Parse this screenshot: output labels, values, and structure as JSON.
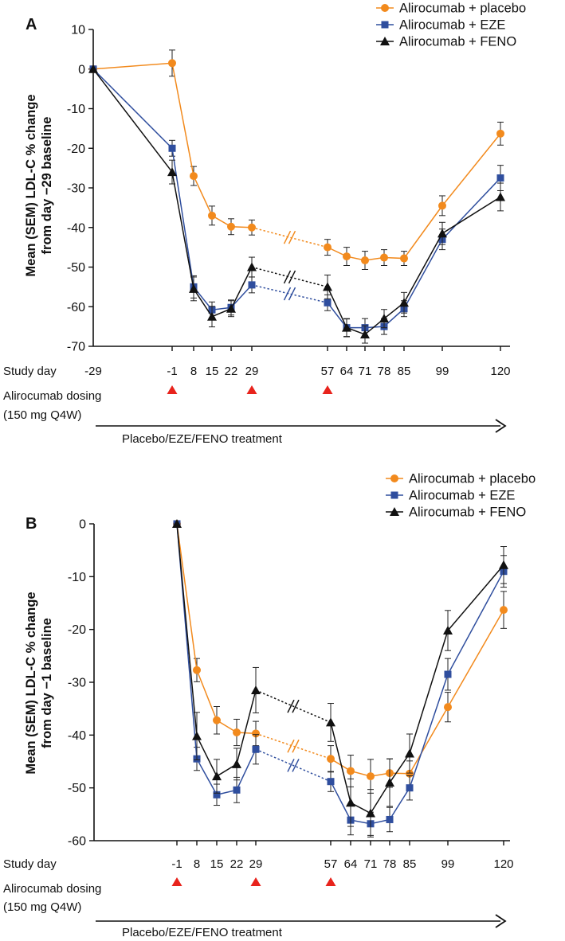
{
  "colors": {
    "placebo": "#f28a1d",
    "eze": "#2f4e9e",
    "feno": "#111111",
    "dosing": "#e8231c",
    "axis": "#111111"
  },
  "labels": {
    "study_day": "Study day",
    "dosing_line1": "Alirocumab dosing",
    "dosing_line2": "(150 mg Q4W)",
    "treatment": "Placebo/EZE/FENO treatment"
  },
  "chart_data": [
    {
      "type": "line",
      "panel": "A",
      "ylabel_line1": "Mean (SEM) LDL-C % change",
      "ylabel_line2": "from day −29 baseline",
      "ylim": [
        -70,
        10
      ],
      "yticks": [
        "10",
        "0",
        "-10",
        "-20",
        "-30",
        "-40",
        "-50",
        "-60",
        "-70"
      ],
      "x": [
        "-29",
        "-1",
        "8",
        "15",
        "22",
        "29",
        "57",
        "64",
        "71",
        "78",
        "85",
        "99",
        "120"
      ],
      "series": [
        {
          "name": "Alirocumab + placebo",
          "key": "placebo",
          "marker": "circle",
          "values": [
            0,
            1.5,
            -27,
            -37,
            -39.8,
            -40,
            -45,
            -47.3,
            -48.3,
            -47.6,
            -47.8,
            -34.5,
            -16.3
          ],
          "sem": [
            0,
            3.3,
            2.4,
            2.4,
            2.0,
            1.9,
            2.0,
            2.3,
            2.3,
            2.0,
            1.8,
            2.5,
            2.9
          ]
        },
        {
          "name": "Alirocumab + EZE",
          "key": "eze",
          "marker": "square",
          "values": [
            0,
            -20,
            -55,
            -60.8,
            -60.2,
            -54.5,
            -59,
            -65.3,
            -65.3,
            -65,
            -60.5,
            -43,
            -27.5
          ],
          "sem": [
            0,
            2.0,
            2.8,
            2.0,
            1.9,
            2.0,
            2.0,
            2.2,
            2.3,
            2.0,
            2.0,
            2.6,
            3.2
          ]
        },
        {
          "name": "Alirocumab + FENO",
          "key": "feno",
          "marker": "triangle",
          "values": [
            0,
            -26,
            -55.5,
            -62.5,
            -60.5,
            -50,
            -55,
            -65.3,
            -67,
            -63,
            -59,
            -41.5,
            -32.3
          ],
          "sem": [
            0,
            3.0,
            3.0,
            2.6,
            2.0,
            2.5,
            3.0,
            2.3,
            2.2,
            2.3,
            2.6,
            2.8,
            3.5
          ]
        }
      ]
    },
    {
      "type": "line",
      "panel": "B",
      "ylabel_line1": "Mean (SEM) LDL-C % change",
      "ylabel_line2": "from day −1 baseline",
      "ylim": [
        -60,
        0
      ],
      "yticks": [
        "0",
        "-10",
        "-20",
        "-30",
        "-40",
        "-50",
        "-60"
      ],
      "x": [
        "-1",
        "8",
        "15",
        "22",
        "29",
        "57",
        "64",
        "71",
        "78",
        "85",
        "99",
        "120"
      ],
      "series": [
        {
          "name": "Alirocumab + placebo",
          "key": "placebo",
          "marker": "circle",
          "values": [
            0,
            -27.7,
            -37.2,
            -39.5,
            -39.7,
            -44.5,
            -46.8,
            -47.8,
            -47.2,
            -47.3,
            -34.7,
            -16.3
          ],
          "sem": [
            0,
            2.2,
            2.6,
            2.5,
            2.3,
            2.5,
            3.0,
            3.2,
            2.7,
            2.4,
            2.8,
            3.5
          ]
        },
        {
          "name": "Alirocumab + EZE",
          "key": "eze",
          "marker": "square",
          "values": [
            0,
            -44.5,
            -51.3,
            -50.4,
            -42.7,
            -48.8,
            -56.1,
            -56.8,
            -56,
            -50,
            -28.5,
            -9
          ],
          "sem": [
            0,
            2.2,
            2.0,
            2.4,
            2.8,
            1.9,
            2.8,
            2.2,
            2.3,
            2.3,
            3.0,
            3.0
          ]
        },
        {
          "name": "Alirocumab + FENO",
          "key": "feno",
          "marker": "triangle",
          "values": [
            0,
            -40.2,
            -47.8,
            -45.5,
            -31.5,
            -37.6,
            -52.8,
            -54.8,
            -49,
            -43.5,
            -20.2,
            -7.8
          ],
          "sem": [
            0,
            4.5,
            3.2,
            3.0,
            4.3,
            3.6,
            4.5,
            4.5,
            4.5,
            3.7,
            3.8,
            3.5
          ]
        }
      ]
    }
  ]
}
